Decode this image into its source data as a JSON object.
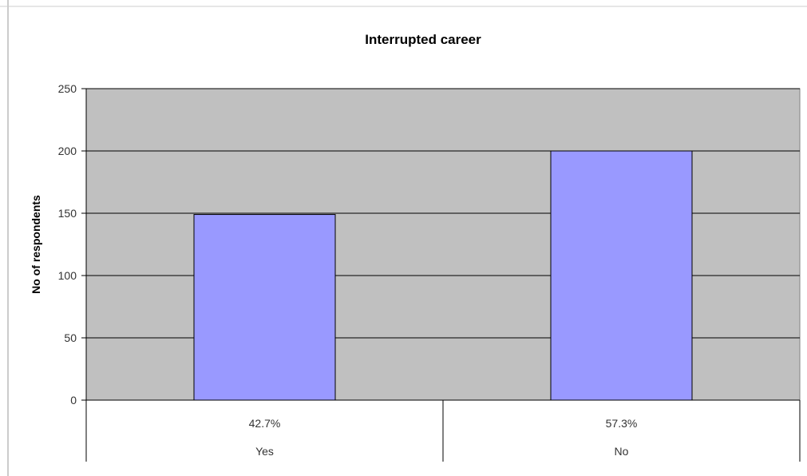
{
  "chart_data": {
    "type": "bar",
    "title": "Interrupted career",
    "ylabel": "No of respondents",
    "xlabel": "",
    "ylim": [
      0,
      250
    ],
    "yticks": [
      0,
      50,
      100,
      150,
      200,
      250
    ],
    "categories": [
      "Yes",
      "No"
    ],
    "percent_labels": [
      "42.7%",
      "57.3%"
    ],
    "values": [
      149,
      200
    ],
    "grid": true,
    "legend": "none",
    "colors": {
      "plot_background": "#c0c0c0",
      "bar_fill": "#9999ff",
      "gridline": "#000000"
    }
  }
}
